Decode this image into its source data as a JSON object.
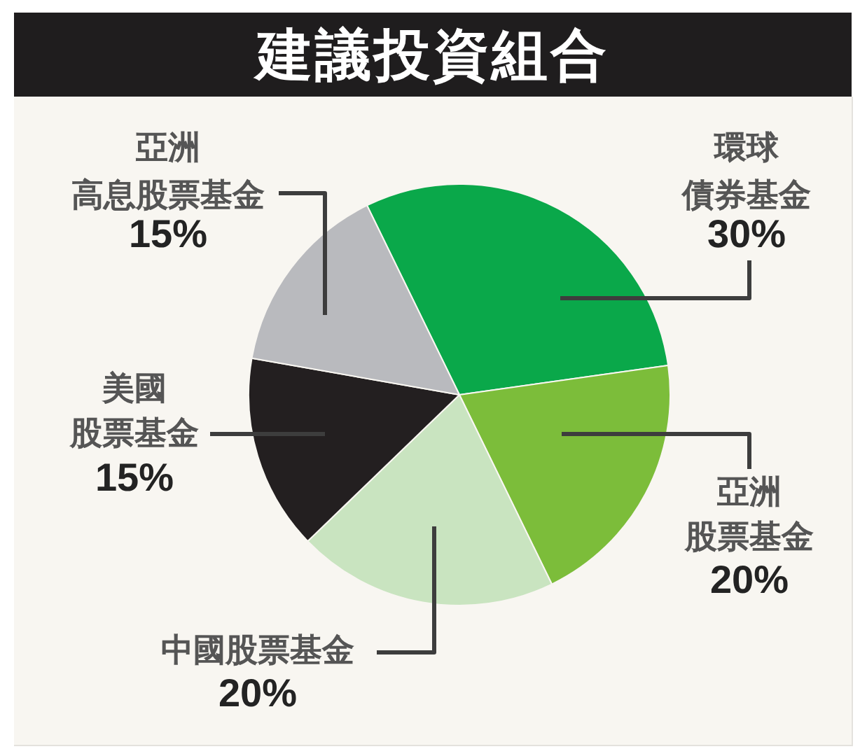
{
  "chart_data": {
    "type": "pie",
    "title": "建議投資組合",
    "categories": [
      "環球債券基金",
      "亞洲股票基金",
      "中國股票基金",
      "美國股票基金",
      "亞洲高息股票基金"
    ],
    "values": [
      30,
      20,
      20,
      15,
      15
    ],
    "colors": [
      "#0aa84a",
      "#7cbd3a",
      "#c9e4c0",
      "#231f20",
      "#b9babe"
    ],
    "value_labels": [
      "30%",
      "20%",
      "20%",
      "15%",
      "15%"
    ]
  }
}
